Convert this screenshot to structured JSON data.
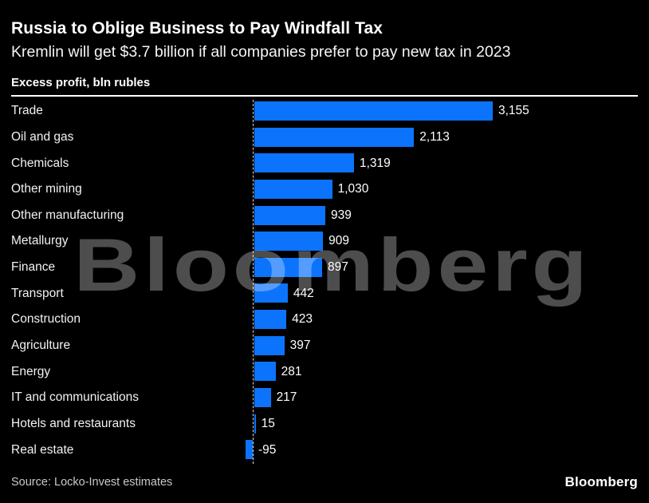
{
  "header": {
    "title": "Russia to Oblige Business to Pay Windfall Tax",
    "subtitle": "Kremlin will get $3.7 billion if all companies prefer to pay new tax in 2023"
  },
  "chart_data": {
    "type": "bar",
    "orientation": "horizontal",
    "title": "Russia to Oblige Business to Pay Windfall Tax",
    "subtitle": "Kremlin will get $3.7 billion if all companies prefer to pay new tax in 2023",
    "axis_label": "Excess profit, bln rubles",
    "categories": [
      "Trade",
      "Oil and gas",
      "Chemicals",
      "Other mining",
      "Other manufacturing",
      "Metallurgy",
      "Finance",
      "Transport",
      "Construction",
      "Agriculture",
      "Energy",
      "IT and communications",
      "Hotels and restaurants",
      "Real estate"
    ],
    "values": [
      3155,
      2113,
      1319,
      1030,
      939,
      909,
      897,
      442,
      423,
      397,
      281,
      217,
      15,
      -95
    ],
    "value_labels": [
      "3,155",
      "2,113",
      "1,319",
      "1,030",
      "939",
      "909",
      "897",
      "442",
      "423",
      "397",
      "281",
      "217",
      "15",
      "-95"
    ],
    "baseline": 0,
    "xlim": [
      -200,
      3300
    ],
    "grid": false,
    "legend": "none",
    "bar_color": "#0c73fc"
  },
  "watermark": "Bloomberg",
  "footer": {
    "source": "Source: Locko-Invest estimates",
    "logo": "Bloomberg"
  },
  "colors": {
    "background": "#000000",
    "bar": "#0c73fc",
    "text": "#ffffff",
    "source_text": "#c9c9c9",
    "watermark": "rgba(255,255,255,0.30)"
  }
}
